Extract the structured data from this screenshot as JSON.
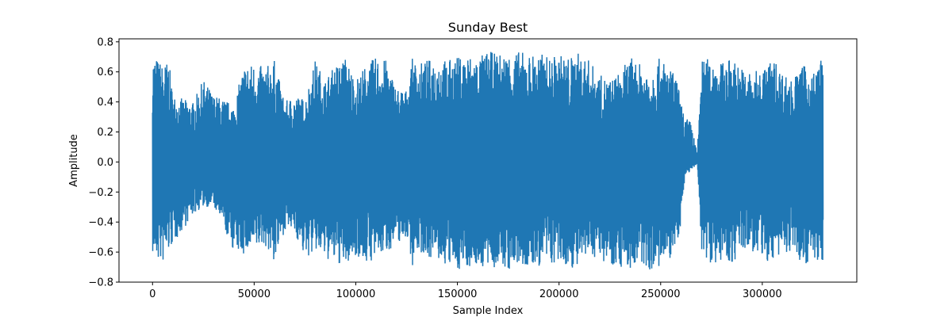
{
  "chart_data": {
    "type": "line",
    "title": "Sunday Best",
    "xlabel": "Sample Index",
    "ylabel": "Amplitude",
    "xlim": [
      -16500,
      346500
    ],
    "ylim": [
      -0.8,
      0.82
    ],
    "x_ticks": [
      0,
      50000,
      100000,
      150000,
      200000,
      250000,
      300000
    ],
    "x_tick_labels": [
      "0",
      "50000",
      "100000",
      "150000",
      "200000",
      "250000",
      "300000"
    ],
    "y_ticks": [
      -0.8,
      -0.6,
      -0.4,
      -0.2,
      0.0,
      0.2,
      0.4,
      0.6,
      0.8
    ],
    "y_tick_labels": [
      "−0.8",
      "−0.6",
      "−0.4",
      "−0.2",
      "0.0",
      "0.2",
      "0.4",
      "0.6",
      "0.8"
    ],
    "grid": false,
    "series": [
      {
        "color": "#1f77b4",
        "x": [
          0,
          2000,
          5000,
          8000,
          10000,
          15000,
          20000,
          25000,
          30000,
          35000,
          40000,
          45000,
          50000,
          55000,
          60000,
          65000,
          70000,
          75000,
          80000,
          85000,
          90000,
          95000,
          100000,
          105000,
          110000,
          115000,
          120000,
          125000,
          128000,
          130000,
          135000,
          140000,
          145000,
          150000,
          155000,
          160000,
          165000,
          170000,
          175000,
          180000,
          185000,
          190000,
          195000,
          200000,
          205000,
          210000,
          215000,
          220000,
          225000,
          230000,
          235000,
          240000,
          245000,
          250000,
          255000,
          258000,
          260000,
          262000,
          265000,
          268000,
          270000,
          275000,
          280000,
          285000,
          290000,
          295000,
          300000,
          305000,
          310000,
          315000,
          320000,
          325000,
          330000
        ],
        "upper": [
          0.73,
          0.7,
          0.65,
          0.68,
          0.45,
          0.42,
          0.4,
          0.55,
          0.45,
          0.42,
          0.38,
          0.65,
          0.66,
          0.63,
          0.68,
          0.4,
          0.45,
          0.42,
          0.68,
          0.55,
          0.65,
          0.7,
          0.55,
          0.65,
          0.7,
          0.68,
          0.5,
          0.48,
          0.7,
          0.65,
          0.68,
          0.7,
          0.68,
          0.7,
          0.72,
          0.7,
          0.74,
          0.72,
          0.73,
          0.74,
          0.72,
          0.73,
          0.7,
          0.72,
          0.7,
          0.73,
          0.68,
          0.58,
          0.55,
          0.6,
          0.7,
          0.65,
          0.62,
          0.7,
          0.62,
          0.56,
          0.4,
          0.3,
          0.27,
          0.05,
          0.68,
          0.7,
          0.66,
          0.7,
          0.63,
          0.6,
          0.62,
          0.7,
          0.6,
          0.55,
          0.65,
          0.6,
          0.72
        ],
        "lower": [
          -0.62,
          -0.66,
          -0.68,
          -0.6,
          -0.55,
          -0.45,
          -0.35,
          -0.3,
          -0.3,
          -0.45,
          -0.6,
          -0.62,
          -0.6,
          -0.55,
          -0.68,
          -0.45,
          -0.48,
          -0.65,
          -0.6,
          -0.65,
          -0.68,
          -0.7,
          -0.62,
          -0.68,
          -0.65,
          -0.6,
          -0.55,
          -0.5,
          -0.7,
          -0.6,
          -0.63,
          -0.66,
          -0.7,
          -0.72,
          -0.7,
          -0.7,
          -0.72,
          -0.7,
          -0.73,
          -0.7,
          -0.72,
          -0.7,
          -0.68,
          -0.7,
          -0.7,
          -0.72,
          -0.62,
          -0.65,
          -0.68,
          -0.7,
          -0.72,
          -0.7,
          -0.72,
          -0.72,
          -0.65,
          -0.55,
          -0.4,
          -0.1,
          -0.05,
          -0.02,
          -0.6,
          -0.68,
          -0.66,
          -0.68,
          -0.6,
          -0.6,
          -0.66,
          -0.68,
          -0.6,
          -0.62,
          -0.68,
          -0.66,
          -0.7
        ]
      }
    ]
  }
}
